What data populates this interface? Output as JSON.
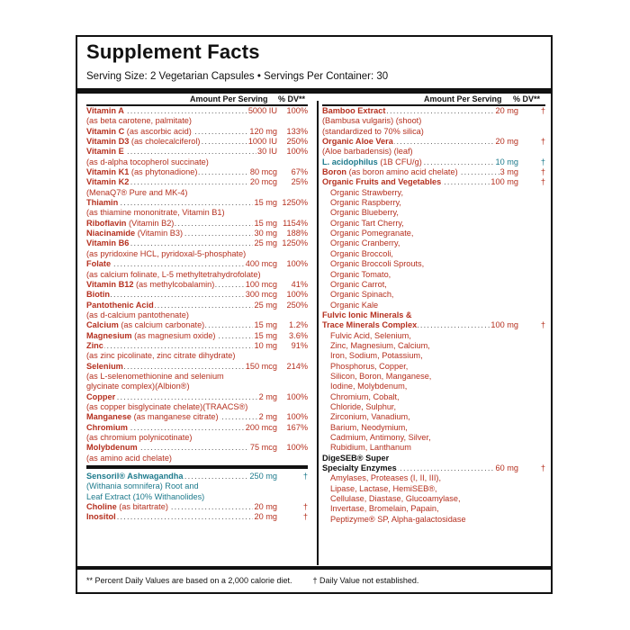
{
  "title": "Supplement Facts",
  "serving": "Serving Size: 2 Vegetarian Capsules • Servings Per Container: 30",
  "headers": {
    "left_amount": "Amount Per Serving",
    "left_dv": "% DV**",
    "right_amount": "Amount Per Serving",
    "right_dv": "% DV**"
  },
  "left_rows": [
    {
      "type": "nutrient",
      "name": "Vitamin A",
      "extra": "",
      "amount": "5000 IU",
      "dv": "100%"
    },
    {
      "type": "desc",
      "text": "(as beta carotene, palmitate)"
    },
    {
      "type": "nutrient",
      "name": "Vitamin C",
      "extra": "(as ascorbic acid)",
      "amount": "120 mg",
      "dv": "133%"
    },
    {
      "type": "nutrient",
      "name": "Vitamin D3",
      "extra": "(as cholecalciferol)",
      "amount": "1000 IU",
      "dv": "250%"
    },
    {
      "type": "nutrient",
      "name": "Vitamin E",
      "extra": "",
      "amount": "30 IU",
      "dv": "100%"
    },
    {
      "type": "desc",
      "text": "(as d-alpha tocopherol succinate)"
    },
    {
      "type": "nutrient",
      "name": "Vitamin K1",
      "extra": "(as phytonadione)",
      "amount": "80 mcg",
      "dv": "67%"
    },
    {
      "type": "nutrient",
      "name": "Vitamin K2",
      "extra": "",
      "amount": "20 mcg",
      "dv": "25%"
    },
    {
      "type": "desc",
      "text": "(MenaQ7® Pure and MK-4)"
    },
    {
      "type": "nutrient",
      "name": "Thiamin",
      "extra": "",
      "amount": "15 mg",
      "dv": "1250%"
    },
    {
      "type": "desc",
      "text": "(as thiamine mononitrate, Vitamin B1)"
    },
    {
      "type": "nutrient",
      "name": "Riboflavin",
      "extra": "(Vitamin B2)",
      "amount": "15 mg",
      "dv": "1154%"
    },
    {
      "type": "nutrient",
      "name": "Niacinamide",
      "extra": "(Vitamin B3)",
      "amount": "30 mg",
      "dv": "188%"
    },
    {
      "type": "nutrient",
      "name": "Vitamin B6",
      "extra": "",
      "amount": "25 mg",
      "dv": "1250%"
    },
    {
      "type": "desc",
      "text": "(as pyridoxine HCL, pyridoxal-5-phosphate)"
    },
    {
      "type": "nutrient",
      "name": "Folate",
      "extra": "",
      "amount": "400 mcg",
      "dv": "100%"
    },
    {
      "type": "desc",
      "text": "(as calcium folinate, L-5 methyltetrahydrofolate)"
    },
    {
      "type": "nutrient",
      "name": "Vitamin B12",
      "extra": "(as methylcobalamin)",
      "amount": "100 mcg",
      "dv": "41%"
    },
    {
      "type": "nutrient",
      "name": "Biotin",
      "extra": "",
      "amount": "300 mcg",
      "dv": "100%"
    },
    {
      "type": "nutrient",
      "name": "Pantothenic Acid",
      "extra": "",
      "amount": "25 mg",
      "dv": "250%"
    },
    {
      "type": "desc",
      "text": "(as d-calcium pantothenate)"
    },
    {
      "type": "nutrient",
      "name": "Calcium",
      "extra": "(as calcium carbonate)",
      "amount": "15 mg",
      "dv": "1.2%"
    },
    {
      "type": "nutrient",
      "name": "Magnesium",
      "extra": "(as magnesium oxide)",
      "amount": "15 mg",
      "dv": "3.6%"
    },
    {
      "type": "nutrient",
      "name": "Zinc",
      "extra": "",
      "amount": "10 mg",
      "dv": "91%"
    },
    {
      "type": "desc",
      "text": "(as zinc picolinate, zinc citrate dihydrate)"
    },
    {
      "type": "nutrient",
      "name": "Selenium",
      "extra": "",
      "amount": "150 mcg",
      "dv": "214%"
    },
    {
      "type": "desc",
      "text": "(as L-selenomethionine and selenium"
    },
    {
      "type": "desc",
      "text": "glycinate complex)(Albion®)"
    },
    {
      "type": "nutrient",
      "name": "Copper",
      "extra": "",
      "amount": "2 mg",
      "dv": "100%"
    },
    {
      "type": "desc",
      "text": "(as copper bisglycinate chelate)(TRAACS®)"
    },
    {
      "type": "nutrient",
      "name": "Manganese",
      "extra": "(as manganese citrate)",
      "amount": "2 mg",
      "dv": "100%"
    },
    {
      "type": "nutrient",
      "name": "Chromium",
      "extra": "",
      "amount": "200 mcg",
      "dv": "167%"
    },
    {
      "type": "desc",
      "text": "(as chromium polynicotinate)"
    },
    {
      "type": "nutrient",
      "name": "Molybdenum",
      "extra": "",
      "amount": "75 mcg",
      "dv": "100%"
    },
    {
      "type": "desc",
      "text": "(as amino acid chelate)"
    }
  ],
  "left_bottom_rows": [
    {
      "type": "tnutrient",
      "name": "Sensoril® Ashwagandha",
      "extra": "",
      "amount": "250 mg",
      "dv": "†"
    },
    {
      "type": "tdesc",
      "text": "(Withania somnifera) Root and"
    },
    {
      "type": "tdesc",
      "text": "Leaf Extract (10% Withanolides)"
    },
    {
      "type": "nutrient",
      "name": "Choline",
      "extra": "(as bitartrate)",
      "amount": "20 mg",
      "dv": "†"
    },
    {
      "type": "nutrient",
      "name": "Inositol",
      "extra": "",
      "amount": "20 mg",
      "dv": "†"
    }
  ],
  "right_rows": [
    {
      "type": "nutrient",
      "name": "Bamboo Extract",
      "extra": "",
      "amount": "20 mg",
      "dv": "†"
    },
    {
      "type": "desc",
      "text": "(Bambusa vulgaris) (shoot)"
    },
    {
      "type": "desc",
      "text": "(standardized to 70% silica)"
    },
    {
      "type": "nutrient",
      "name": "Organic Aloe Vera",
      "extra": "",
      "amount": "20 mg",
      "dv": "†"
    },
    {
      "type": "desc",
      "text": "(Aloe barbadensis) (leaf)"
    },
    {
      "type": "tnutrient",
      "name": "L. acidophilus",
      "extra": "(1B CFU/g)",
      "amount": "10 mg",
      "dv": "†"
    },
    {
      "type": "nutrient",
      "name": "Boron",
      "extra": "(as boron amino acid chelate)",
      "amount": "3 mg",
      "dv": "†"
    },
    {
      "type": "nutrient",
      "name": "Organic Fruits and Vegetables",
      "extra": "",
      "amount": "100 mg",
      "dv": "†"
    },
    {
      "type": "sub",
      "text": "Organic Strawberry,"
    },
    {
      "type": "sub",
      "text": "Organic Raspberry,"
    },
    {
      "type": "sub",
      "text": "Organic Blueberry,"
    },
    {
      "type": "sub",
      "text": "Organic Tart Cherry,"
    },
    {
      "type": "sub",
      "text": "Organic Pomegranate,"
    },
    {
      "type": "sub",
      "text": "Organic Cranberry,"
    },
    {
      "type": "sub",
      "text": "Organic Broccoli,"
    },
    {
      "type": "sub",
      "text": "Organic Broccoli Sprouts,"
    },
    {
      "type": "sub",
      "text": "Organic Tomato,"
    },
    {
      "type": "sub",
      "text": "Organic Carrot,"
    },
    {
      "type": "sub",
      "text": "Organic Spinach,"
    },
    {
      "type": "sub",
      "text": "Organic Kale"
    },
    {
      "type": "namebold",
      "text": "Fulvic Ionic Minerals &"
    },
    {
      "type": "nutrient",
      "name": "Trace Minerals Complex",
      "extra": "",
      "amount": "100 mg",
      "dv": "†"
    },
    {
      "type": "sub",
      "text": "Fulvic Acid, Selenium,"
    },
    {
      "type": "sub",
      "text": "Zinc, Magnesium, Calcium,"
    },
    {
      "type": "sub",
      "text": "Iron, Sodium, Potassium,"
    },
    {
      "type": "sub",
      "text": "Phosphorus, Copper,"
    },
    {
      "type": "sub",
      "text": "Silicon, Boron, Manganese,"
    },
    {
      "type": "sub",
      "text": "Iodine, Molybdenum,"
    },
    {
      "type": "sub",
      "text": "Chromium, Cobalt,"
    },
    {
      "type": "sub",
      "text": "Chloride, Sulphur,"
    },
    {
      "type": "sub",
      "text": "Zirconium, Vanadium,"
    },
    {
      "type": "sub",
      "text": "Barium, Neodymium,"
    },
    {
      "type": "sub",
      "text": "Cadmium, Antimony, Silver,"
    },
    {
      "type": "sub",
      "text": "Rubidium, Lanthanum"
    },
    {
      "type": "bnamebold",
      "text": "DigeSEB® Super"
    },
    {
      "type": "bnutrient",
      "name": "Specialty Enzymes",
      "extra": "",
      "amount": "60 mg",
      "dv": "†"
    },
    {
      "type": "sub",
      "text": "Amylases, Proteases (I, II, III),"
    },
    {
      "type": "sub",
      "text": "Lipase, Lactase, HemiSEB®,"
    },
    {
      "type": "sub",
      "text": "Cellulase, Diastase, Glucoamylase,"
    },
    {
      "type": "sub",
      "text": "Invertase, Bromelain, Papain,"
    },
    {
      "type": "sub",
      "text": "Peptizyme® SP, Alpha-galactosidase"
    }
  ],
  "footer": {
    "note1": "** Percent Daily Values are based on a 2,000 calorie diet.",
    "note2": "† Daily Value not established."
  },
  "colors": {
    "nutrient": "#b5301f",
    "teal": "#1d7a8c",
    "text": "#111111"
  }
}
